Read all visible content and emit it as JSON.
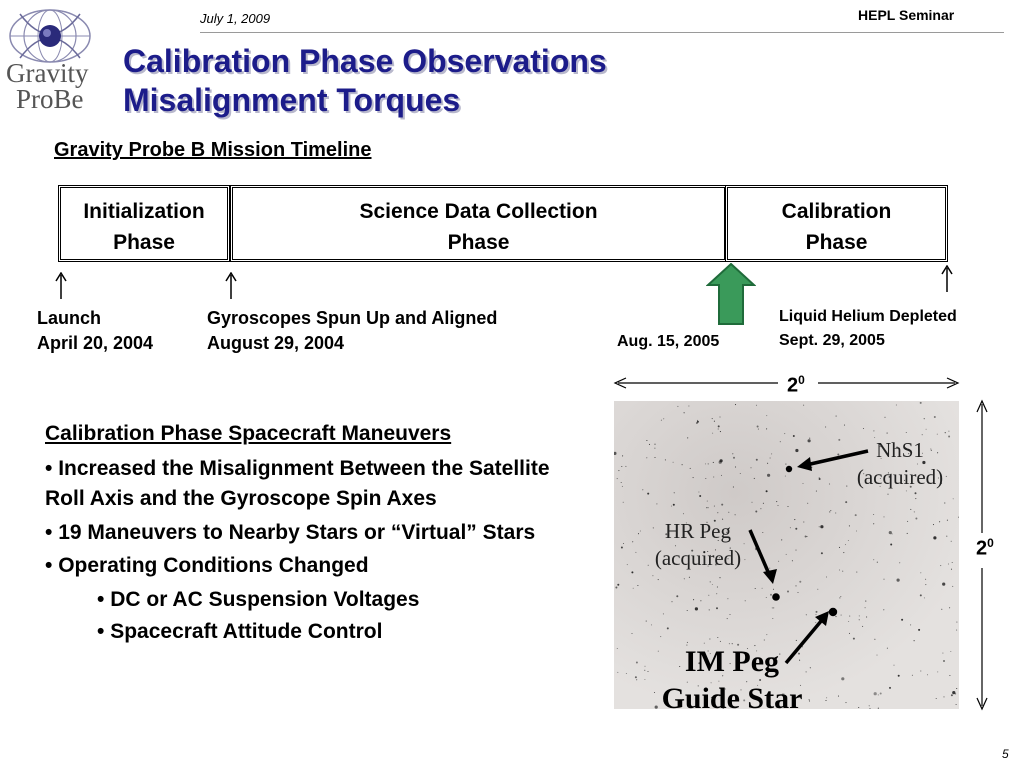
{
  "header": {
    "date": "July 1, 2009",
    "seminar": "HEPL Seminar",
    "logo": {
      "line1": "Gravity",
      "line2": "ProBe"
    }
  },
  "title": {
    "line1": "Calibration Phase Observations",
    "line2": "Misalignment Torques"
  },
  "timeline": {
    "heading": "Gravity Probe B Mission Timeline",
    "phases": [
      {
        "line1": "Initialization",
        "line2": "Phase"
      },
      {
        "line1": "Science Data Collection",
        "line2": "Phase"
      },
      {
        "line1": "Calibration",
        "line2": "Phase"
      }
    ],
    "events": [
      {
        "line1": "Launch",
        "line2": "April 20, 2004"
      },
      {
        "line1": "Gyroscopes Spun Up and Aligned",
        "line2": "August 29, 2004"
      },
      {
        "line1": "Aug. 15, 2005"
      },
      {
        "line1": "Liquid Helium Depleted",
        "line2": "Sept. 29, 2005"
      }
    ]
  },
  "maneuvers": {
    "heading": "Calibration Phase Spacecraft Maneuvers",
    "items": [
      "Increased the Misalignment Between the Satellite Roll Axis and the Gyroscope Spin Axes",
      "19 Maneuvers to Nearby Stars or “Virtual” Stars",
      "Operating Conditions Changed"
    ],
    "subitems": [
      "DC or AC Suspension Voltages",
      "Spacecraft Attitude Control"
    ],
    "bullet": "•"
  },
  "starfield": {
    "scale_base": "2",
    "scale_exp": "0",
    "labels": {
      "nhs1": {
        "name": "NhS1",
        "status": "(acquired)"
      },
      "hrpeg": {
        "name": "HR Peg",
        "status": "(acquired)"
      },
      "impeg": {
        "line1": "IM Peg",
        "line2": "Guide Star"
      }
    }
  },
  "colors": {
    "title": "#1c1c8a",
    "green_arrow": "#3a9a5a",
    "starfield_bg": "#dcd8d5"
  },
  "page_number": "5"
}
